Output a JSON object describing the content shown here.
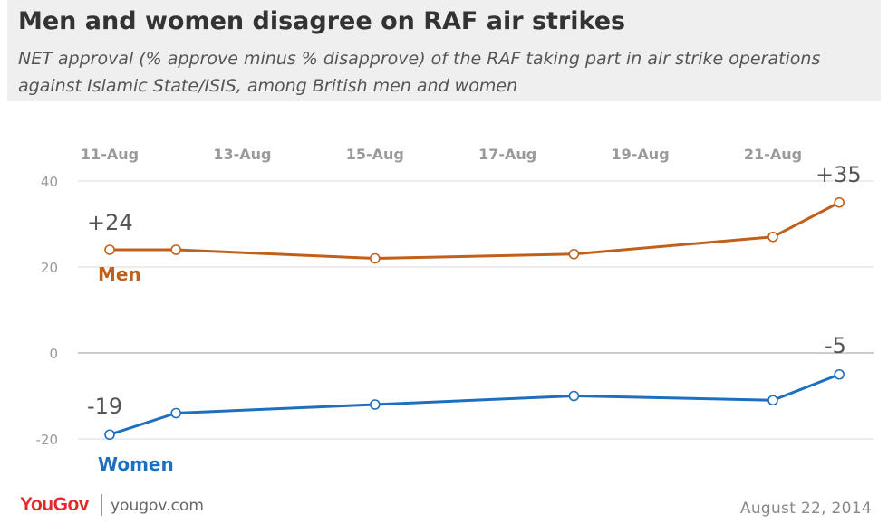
{
  "title": "Men and women disagree on RAF air strikes",
  "subtitle": "NET approval (% approve minus % disapprove) of the RAF taking part in air strike operations against Islamic State/ISIS, among British men and women",
  "footer": {
    "brand": "YouGov",
    "site": "yougov.com",
    "date": "August 22, 2014"
  },
  "colors": {
    "men": "#c0601a",
    "women": "#1f6fc0",
    "grid": "#d8d8d8",
    "zero_line": "#bbbbbb",
    "axis_text": "#9a9a9a",
    "annotation": "#555555"
  },
  "chart_data": {
    "type": "line",
    "x_tick_labels": [
      "11-Aug",
      "13-Aug",
      "15-Aug",
      "17-Aug",
      "19-Aug",
      "21-Aug"
    ],
    "y_tick_labels": [
      "40",
      "20",
      "0",
      "-20"
    ],
    "y_ticks": [
      40,
      20,
      0,
      -20
    ],
    "ylim": [
      -22,
      42
    ],
    "grid": true,
    "series": [
      {
        "name": "Men",
        "key": "men",
        "dates": [
          "11-Aug",
          "12-Aug",
          "15-Aug",
          "18-Aug",
          "21-Aug",
          "22-Aug"
        ],
        "values": [
          24,
          24,
          22,
          23,
          27,
          35
        ],
        "start_label": "+24",
        "end_label": "+35"
      },
      {
        "name": "Women",
        "key": "women",
        "dates": [
          "11-Aug",
          "12-Aug",
          "15-Aug",
          "18-Aug",
          "21-Aug",
          "22-Aug"
        ],
        "values": [
          -19,
          -14,
          -12,
          -10,
          -11,
          -5
        ],
        "start_label": "-19",
        "end_label": "-5"
      }
    ]
  }
}
